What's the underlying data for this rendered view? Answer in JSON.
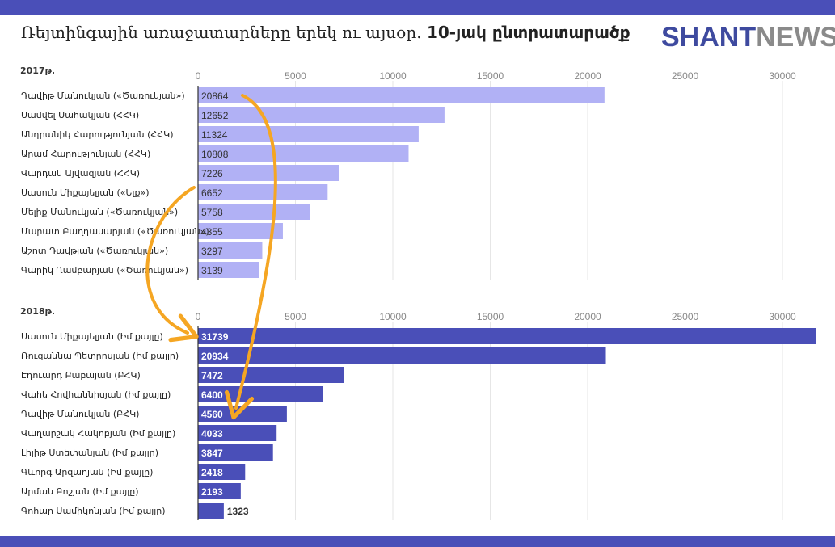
{
  "header": {
    "title_text": "Ռեյտինգային առաջատարները երեկ ու այսօր. ",
    "title_bold": "10-յակ ընտրատարածք",
    "logo_part1": "SHANT",
    "logo_part2": "NEWS"
  },
  "colors": {
    "band": "#4a4fb8",
    "bar_2017": "#b1b1f5",
    "bar_2018": "#4a4fb8",
    "arrow": "#f5a623",
    "grid": "#e6e6e6"
  },
  "chart_data": [
    {
      "type": "bar",
      "orientation": "horizontal",
      "title": "2017թ.",
      "xlim": [
        0,
        32000
      ],
      "ticks": [
        0,
        5000,
        10000,
        15000,
        20000,
        25000,
        30000
      ],
      "tick_labels": [
        "0",
        "5000",
        "10000",
        "15000",
        "20000",
        "25000",
        "30000"
      ],
      "grid": true,
      "categories": [
        "Դավիթ Մանուկյան («Ծառուկյան»)",
        "Սամվել Սահակյան (ՀՀԿ)",
        "Անդրանիկ Հարությունյան (ՀՀԿ)",
        "Արամ Հարությունյան (ՀՀԿ)",
        "Վարդան Այվազյան (ՀՀԿ)",
        "Սասուն Միքայելյան («Ելք»)",
        "Մելիք Մանուկյան («Ծառուկյան»)",
        "Մարատ Բաղդասարյան («Ծառուկյան»)",
        "Աշոտ Դավթյան («Ծառուկյան»)",
        "Գարիկ Ղամբարյան («Ծառուկյան»)"
      ],
      "values": [
        20864,
        12652,
        11324,
        10808,
        7226,
        6652,
        5758,
        4355,
        3297,
        3139
      ],
      "value_labels": [
        "20864",
        "12652",
        "11324",
        "10808",
        "7226",
        "6652",
        "5758",
        "4355",
        "3297",
        "3139"
      ]
    },
    {
      "type": "bar",
      "orientation": "horizontal",
      "title": "2018թ.",
      "xlim": [
        0,
        32000
      ],
      "ticks": [
        0,
        5000,
        10000,
        15000,
        20000,
        25000,
        30000
      ],
      "tick_labels": [
        "0",
        "5000",
        "10000",
        "15000",
        "20000",
        "25000",
        "30000"
      ],
      "grid": true,
      "categories": [
        "Սասուն Միքայելյան (Իմ քայլը)",
        "Ռուզաննա Պետրոսյան (Իմ քայլը)",
        "Էդուարդ Բաբայան (ԲՀԿ)",
        "Վահե Հովհաննիսյան (Իմ քայլը)",
        "Դավիթ Մանուկյան (ԲՀԿ)",
        "Վաղարշակ Հակոբյան (Իմ քայլը)",
        "Լիլիթ Ստեփանյան (Իմ քայլը)",
        "Գևորգ Արզաղյան (Իմ քայլը)",
        "Արման Բոշյան (Իմ քայլը)",
        "Գոհար Սամիկոնյան (Իմ քայլը)"
      ],
      "values": [
        31739,
        20934,
        7472,
        6400,
        4560,
        4033,
        3847,
        2418,
        2193,
        1323
      ],
      "value_labels": [
        "31739",
        "20934",
        "7472",
        "6400",
        "4560",
        "4033",
        "3847",
        "2418",
        "2193",
        "1323"
      ]
    }
  ]
}
